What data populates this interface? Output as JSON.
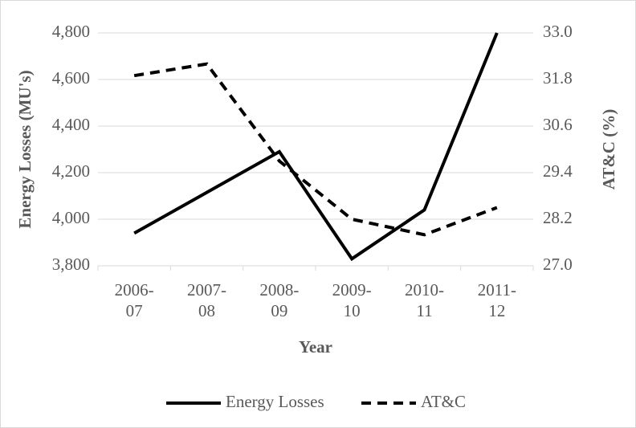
{
  "chart_data": {
    "type": "line",
    "x_label": "Year",
    "y_label": "Energy Losses (MU's)",
    "y2_label": "AT&C (%)",
    "categories": [
      "2006-07",
      "2007-08",
      "2008-09",
      "2009-10",
      "2010-11",
      "2011-12"
    ],
    "series": [
      {
        "name": "Energy Losses",
        "color": "#000000",
        "dash": "solid",
        "values": [
          3940,
          4115,
          4290,
          3830,
          4040,
          4800
        ]
      },
      {
        "name": "AT&C",
        "color": "#000000",
        "dash": "dashed",
        "axis": "y2",
        "values": [
          31.9,
          32.2,
          29.7,
          28.2,
          27.8,
          28.5
        ]
      }
    ],
    "ylim": [
      3800,
      4800
    ],
    "yticks": [
      {
        "value": 3800,
        "label": "3,800"
      },
      {
        "value": 4000,
        "label": "4,000"
      },
      {
        "value": 4200,
        "label": "4,200"
      },
      {
        "value": 4400,
        "label": "4,400"
      },
      {
        "value": 4600,
        "label": "4,600"
      },
      {
        "value": 4800,
        "label": "4,800"
      }
    ],
    "y2lim": [
      27.0,
      33.0
    ],
    "y2ticks": [
      {
        "value": 27.0,
        "label": "27.0"
      },
      28.2,
      29.4,
      30.6,
      31.8,
      {
        "value": 33.0,
        "label": "33.0"
      }
    ],
    "grid": true,
    "legend": "bottom"
  }
}
